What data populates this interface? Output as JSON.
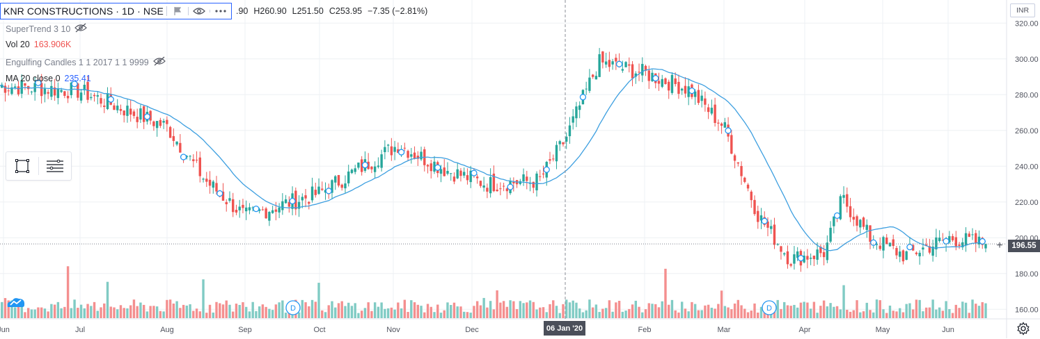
{
  "header": {
    "symbol": "KNR CONSTRUCTIONS",
    "interval": "1D",
    "exchange": "NSE",
    "sep": "·",
    "ohlc_open": ".90",
    "ohlc_high": "H260.90",
    "ohlc_low": "L251.50",
    "ohlc_close": "C253.95",
    "ohlc_change": "−7.35 (−2.81%)"
  },
  "indicators": {
    "supertrend": {
      "label": "SuperTrend 3 10"
    },
    "volume": {
      "label": "Vol 20",
      "value": "163.906K"
    },
    "engulfing": {
      "label": "Engulfing Candles 1 1 2017 1 1 9999"
    },
    "ma": {
      "label": "MA 20 close 0",
      "value": "235.41"
    }
  },
  "currency": "INR",
  "last_price_label": "196.55",
  "crosshair_date": "06 Jan '20",
  "colors": {
    "up": "#26a69a",
    "down": "#ef5350",
    "vol_up": "#80cbc4",
    "vol_down": "#f48f8f",
    "ma": "#3d9fe0",
    "grid": "#eef0f4",
    "axis_text": "#50535e",
    "marker": "#2196f3"
  },
  "chart_data": {
    "type": "candlestick",
    "title": "KNR CONSTRUCTIONS · 1D · NSE",
    "price_range": [
      157,
      324
    ],
    "y_ticks": [
      160,
      180,
      200,
      220,
      240,
      260,
      280,
      300,
      320
    ],
    "y_tick_labels": [
      "160.00",
      "180.00",
      "200.00",
      "220.00",
      "240.00",
      "260.00",
      "280.00",
      "300.00",
      "320.00"
    ],
    "x_tick_labels": [
      "Jun",
      "Jul",
      "Aug",
      "Sep",
      "Oct",
      "Nov",
      "Dec",
      "Feb",
      "Mar",
      "Apr",
      "May",
      "Jun"
    ],
    "last_price": 196.55,
    "crosshair_date": "06 Jan '20",
    "vol_max_k": 800,
    "dividend_markers": [
      "D",
      "D"
    ],
    "ma": {
      "name": "MA 20 close 0",
      "last": 235.41
    },
    "anchors": [
      {
        "date": "Jun",
        "close": 285
      },
      {
        "date": "Jul",
        "close": 282
      },
      {
        "date": "Aug",
        "close": 262
      },
      {
        "date": "Aug mid",
        "close": 232
      },
      {
        "date": "Sep",
        "close": 212
      },
      {
        "date": "Oct",
        "close": 225
      },
      {
        "date": "Nov",
        "close": 252
      },
      {
        "date": "Nov late",
        "close": 238
      },
      {
        "date": "Dec",
        "close": 230
      },
      {
        "date": "Dec late",
        "close": 232
      },
      {
        "date": "06 Jan '20",
        "close": 255
      },
      {
        "date": "Jan mid",
        "close": 298
      },
      {
        "date": "Feb",
        "close": 292
      },
      {
        "date": "Feb mid",
        "close": 283
      },
      {
        "date": "Mar",
        "close": 262
      },
      {
        "date": "Mar mid",
        "close": 212
      },
      {
        "date": "Mar late",
        "close": 188
      },
      {
        "date": "Apr",
        "close": 192
      },
      {
        "date": "Apr mid",
        "close": 222
      },
      {
        "date": "May",
        "close": 200
      },
      {
        "date": "May mid",
        "close": 190
      },
      {
        "date": "Jun",
        "close": 200
      },
      {
        "date": "Jun last",
        "close": 196.55
      }
    ]
  }
}
